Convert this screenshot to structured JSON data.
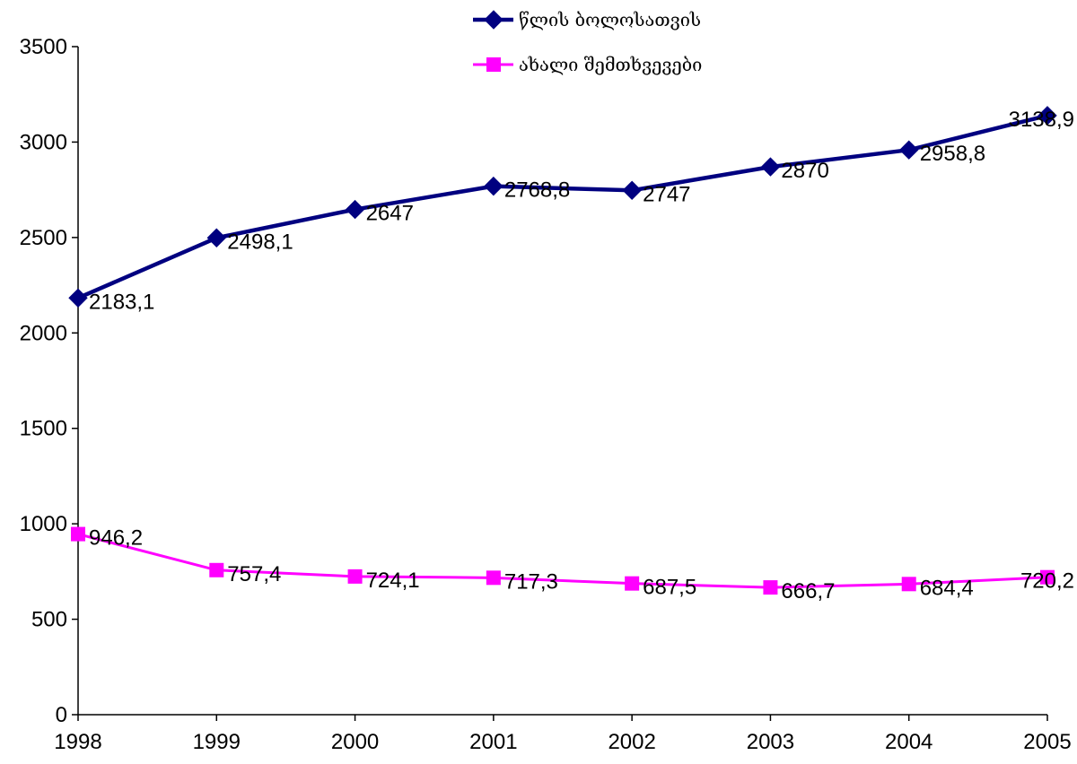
{
  "chart_data": {
    "type": "line",
    "title": "",
    "xlabel": "",
    "ylabel": "",
    "categories": [
      "1998",
      "1999",
      "2000",
      "2001",
      "2002",
      "2003",
      "2004",
      "2005"
    ],
    "ylim": [
      0,
      3500
    ],
    "yticks": [
      0,
      500,
      1000,
      1500,
      2000,
      2500,
      3000,
      3500
    ],
    "grid": false,
    "legend_position": "top-center",
    "series": [
      {
        "name": "წლის ბოლოსათვის",
        "color": "#000080",
        "marker": "diamond",
        "values": [
          2183.1,
          2498.1,
          2647,
          2768.8,
          2747,
          2870,
          2958.8,
          3138.9
        ],
        "labels": [
          "2183,1",
          "2498,1",
          "2647",
          "2768,8",
          "2747",
          "2870",
          "2958,8",
          "3138,9"
        ]
      },
      {
        "name": "ახალი შემთხვევები",
        "color": "#FF00FF",
        "marker": "square",
        "values": [
          946.2,
          757.4,
          724.1,
          717.3,
          687.5,
          666.7,
          684.4,
          720.2
        ],
        "labels": [
          "946,2",
          "757,4",
          "724,1",
          "717,3",
          "687,5",
          "666,7",
          "684,4",
          "720,2"
        ]
      }
    ]
  }
}
